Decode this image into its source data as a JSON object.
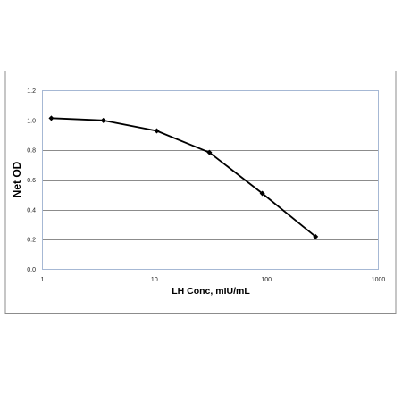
{
  "chart_data": {
    "type": "line",
    "title": "",
    "xlabel": "LH Conc, mIU/mL",
    "ylabel": "Net OD",
    "x_scale": "log",
    "xlim": [
      1,
      1000
    ],
    "ylim": [
      0,
      1.2
    ],
    "x_ticks": [
      1,
      10,
      100,
      1000
    ],
    "x_tick_labels": [
      "1",
      "10",
      "100",
      "1000"
    ],
    "y_ticks": [
      0,
      0.2,
      0.4,
      0.6,
      0.8,
      1.0,
      1.2
    ],
    "y_tick_labels": [
      "0.0",
      "0.2",
      "0.4",
      "0.6",
      "0.8",
      "1.0",
      "1.2"
    ],
    "grid": "horizontal",
    "legend": "none",
    "colors": {
      "series": "#000000",
      "plot_border": "#a6b8d4",
      "grid": "#8c8c8c",
      "outer_border": "#8c8c8c"
    },
    "series": [
      {
        "x": [
          1.2,
          3.5,
          10.5,
          31,
          92,
          275
        ],
        "y": [
          1.015,
          1.0,
          0.93,
          0.785,
          0.51,
          0.22
        ]
      }
    ]
  }
}
